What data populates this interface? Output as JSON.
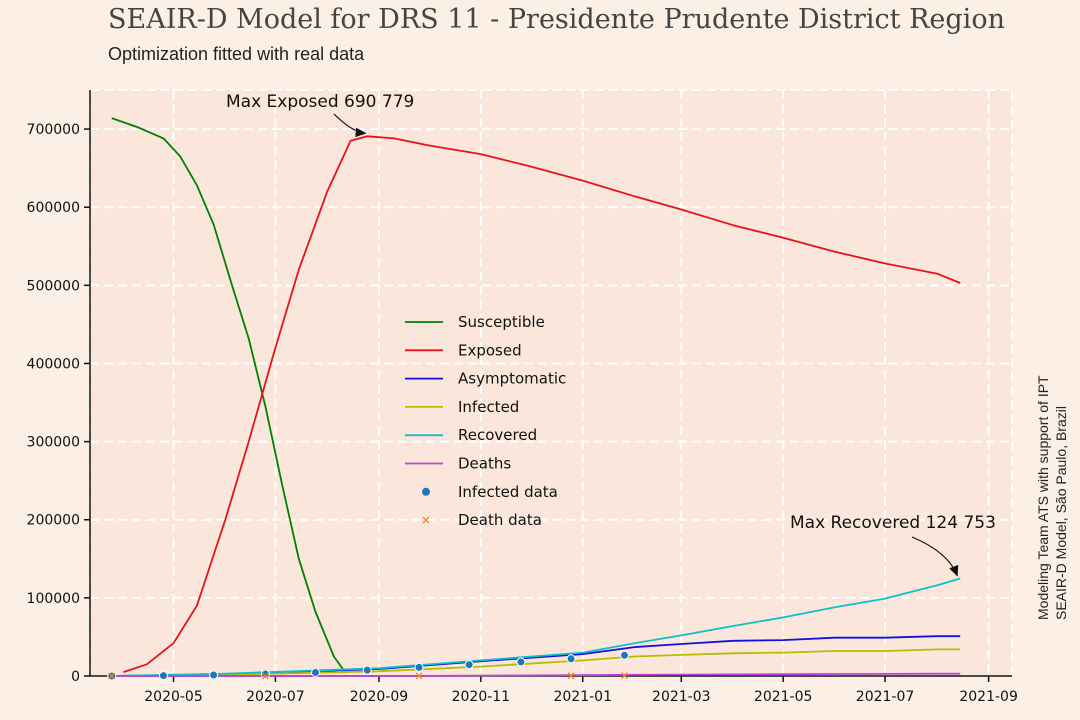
{
  "chart_data": {
    "type": "line",
    "title": "SEAIR-D Model for DRS 11 - Presidente Prudente District Region",
    "subtitle": "Optimization fitted with real data",
    "side_text": [
      "Modeling Team ATS with support of IPT",
      "SEAIR-D Model, São Paulo, Brazil"
    ],
    "x_ticks": [
      "2020-05",
      "2020-07",
      "2020-09",
      "2020-11",
      "2021-01",
      "2021-03",
      "2021-05",
      "2021-07",
      "2021-09"
    ],
    "y_ticks": [
      0,
      100000,
      200000,
      300000,
      400000,
      500000,
      600000,
      700000
    ],
    "xlim": [
      "2020-03-12",
      "2021-09-15"
    ],
    "ylim": [
      0,
      750000
    ],
    "grid": true,
    "legend_position": "center",
    "series": [
      {
        "name": "Susceptible",
        "color": "#008000",
        "x": [
          "2020-03-25",
          "2020-04-10",
          "2020-04-25",
          "2020-05-05",
          "2020-05-15",
          "2020-05-25",
          "2020-06-05",
          "2020-06-15",
          "2020-06-25",
          "2020-07-05",
          "2020-07-15",
          "2020-07-25",
          "2020-08-05",
          "2020-08-12"
        ],
        "y": [
          714000,
          702000,
          688000,
          665000,
          628000,
          578000,
          500000,
          432000,
          345000,
          245000,
          150000,
          82000,
          25000,
          4000
        ]
      },
      {
        "name": "Exposed",
        "color": "#e8121a",
        "x": [
          "2020-04-01",
          "2020-04-15",
          "2020-05-01",
          "2020-05-15",
          "2020-06-01",
          "2020-06-15",
          "2020-07-01",
          "2020-07-15",
          "2020-08-01",
          "2020-08-15",
          "2020-08-25",
          "2020-09-10",
          "2020-10-01",
          "2020-11-01",
          "2020-12-01",
          "2021-01-01",
          "2021-02-01",
          "2021-03-01",
          "2021-04-01",
          "2021-05-01",
          "2021-06-01",
          "2021-07-01",
          "2021-08-01",
          "2021-08-15"
        ],
        "y": [
          5000,
          15000,
          42000,
          90000,
          200000,
          300000,
          420000,
          520000,
          620000,
          685000,
          690779,
          688000,
          679000,
          668000,
          652000,
          634000,
          614000,
          597000,
          577000,
          561000,
          543000,
          528000,
          515000,
          503000
        ]
      },
      {
        "name": "Asymptomatic",
        "color": "#1010e0",
        "x": [
          "2020-03-25",
          "2020-06-01",
          "2020-09-01",
          "2020-11-01",
          "2021-01-01",
          "2021-02-01",
          "2021-03-01",
          "2021-04-01",
          "2021-05-01",
          "2021-06-01",
          "2021-07-01",
          "2021-08-01",
          "2021-08-15"
        ],
        "y": [
          0,
          2000,
          9000,
          19000,
          28000,
          37000,
          41000,
          45000,
          46000,
          49000,
          49000,
          51000,
          51000
        ]
      },
      {
        "name": "Infected",
        "color": "#b5bd00",
        "x": [
          "2020-03-25",
          "2020-06-01",
          "2020-09-01",
          "2020-11-01",
          "2021-01-01",
          "2021-02-01",
          "2021-03-01",
          "2021-04-01",
          "2021-05-01",
          "2021-06-01",
          "2021-07-01",
          "2021-08-01",
          "2021-08-15"
        ],
        "y": [
          0,
          1500,
          6000,
          12000,
          20000,
          25000,
          27000,
          29000,
          30000,
          32000,
          32000,
          34000,
          34000
        ]
      },
      {
        "name": "Recovered",
        "color": "#10c0c8",
        "x": [
          "2020-03-25",
          "2020-06-01",
          "2020-09-01",
          "2020-11-01",
          "2021-01-01",
          "2021-02-01",
          "2021-03-01",
          "2021-04-01",
          "2021-05-01",
          "2021-06-01",
          "2021-07-01",
          "2021-08-01",
          "2021-08-15"
        ],
        "y": [
          0,
          3000,
          10000,
          20000,
          30000,
          42000,
          52000,
          64000,
          75000,
          88000,
          99000,
          116000,
          124753
        ]
      },
      {
        "name": "Deaths",
        "color": "#c040d8",
        "x": [
          "2020-03-25",
          "2020-06-01",
          "2020-09-01",
          "2020-11-01",
          "2021-01-01",
          "2021-02-01",
          "2021-03-01",
          "2021-04-01",
          "2021-05-01",
          "2021-06-01",
          "2021-07-01",
          "2021-08-01",
          "2021-08-15"
        ],
        "y": [
          0,
          0,
          0,
          500,
          1000,
          1500,
          1800,
          2000,
          2300,
          2500,
          2700,
          2900,
          3000
        ]
      }
    ],
    "scatter_series": [
      {
        "name": "Infected data",
        "color": "#1f77b4",
        "marker": "circle",
        "x": [
          "2020-03-25",
          "2020-04-25",
          "2020-05-25",
          "2020-06-25",
          "2020-07-25",
          "2020-08-25",
          "2020-09-25",
          "2020-10-25",
          "2020-11-25",
          "2020-12-25",
          "2021-01-26"
        ],
        "y": [
          0,
          500,
          1200,
          2500,
          4500,
          7500,
          11000,
          14500,
          18000,
          22000,
          26500
        ]
      },
      {
        "name": "Death data",
        "color": "#ff7f0e",
        "marker": "x",
        "x": [
          "2020-03-25",
          "2020-06-25",
          "2020-09-25",
          "2020-12-25",
          "2021-01-26"
        ],
        "y": [
          0,
          50,
          150,
          300,
          400
        ]
      }
    ],
    "annotations": [
      {
        "text": "Max Exposed 690 779",
        "x": "2020-08-25",
        "y": 690779
      },
      {
        "text": "Max Recovered 124 753",
        "x": "2021-08-15",
        "y": 124753
      }
    ]
  }
}
